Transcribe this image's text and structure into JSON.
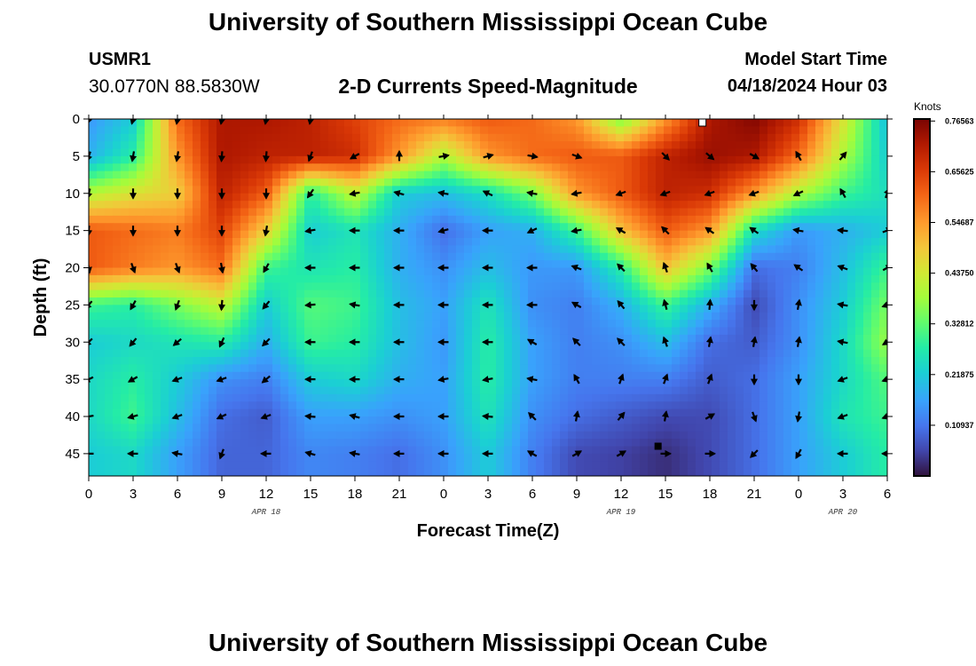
{
  "header": {
    "main_title": "University of Southern Mississippi Ocean Cube",
    "station_id": "USMR1",
    "station_coords": "30.0770N  88.5830W",
    "subtitle": "2-D Currents Speed-Magnitude",
    "model_start_label": "Model Start Time",
    "model_start_value": "04/18/2024 Hour 03"
  },
  "footer": {
    "title": "University of Southern Mississippi Ocean Cube"
  },
  "chart_data": {
    "type": "heatmap",
    "title": "2-D Currents Speed-Magnitude",
    "xlabel": "Forecast Time(Z)",
    "ylabel": "Depth (ft)",
    "x_ticks": [
      "0",
      "3",
      "6",
      "9",
      "12",
      "15",
      "18",
      "21",
      "0",
      "3",
      "6",
      "9",
      "12",
      "15",
      "18",
      "21",
      "0",
      "3",
      "6"
    ],
    "x_hours": [
      0,
      3,
      6,
      9,
      12,
      15,
      18,
      21,
      24,
      27,
      30,
      33,
      36,
      39,
      42,
      45,
      48,
      51,
      54
    ],
    "date_labels": [
      {
        "text": "APR 18",
        "hour": 12
      },
      {
        "text": "APR 19",
        "hour": 36
      },
      {
        "text": "APR 20",
        "hour": 51
      }
    ],
    "y_ticks": [
      0,
      5,
      10,
      15,
      20,
      25,
      30,
      35,
      40,
      45
    ],
    "xlim": [
      0,
      54
    ],
    "ylim": [
      0,
      48
    ],
    "colorbar": {
      "label": "Knots",
      "ticks": [
        "0.76563",
        "0.65625",
        "0.54687",
        "0.43750",
        "0.32812",
        "0.21875",
        "0.10937"
      ],
      "tick_values": [
        0.76563,
        0.65625,
        0.54687,
        0.4375,
        0.32812,
        0.21875,
        0.10937
      ],
      "range": [
        0,
        0.77
      ]
    },
    "vector_rows_depth": [
      0,
      5,
      10,
      15,
      20,
      25,
      30,
      35,
      40,
      45
    ],
    "vector_cols_hour": [
      0,
      3,
      6,
      9,
      12,
      15,
      18,
      21,
      24,
      27,
      30,
      33,
      36,
      39,
      42,
      45,
      48,
      51,
      54
    ],
    "vector_directions_deg": [
      [
        200,
        195,
        190,
        190,
        190,
        190,
        null,
        null,
        null,
        null,
        null,
        null,
        null,
        null,
        null,
        null,
        null,
        null,
        null
      ],
      [
        200,
        190,
        190,
        185,
        185,
        200,
        240,
        0,
        80,
        75,
        100,
        110,
        null,
        135,
        130,
        120,
        330,
        40,
        null
      ],
      [
        195,
        180,
        180,
        180,
        180,
        215,
        260,
        285,
        280,
        295,
        280,
        260,
        250,
        250,
        250,
        250,
        245,
        330,
        20
      ],
      [
        185,
        180,
        180,
        180,
        190,
        260,
        270,
        270,
        255,
        270,
        245,
        260,
        300,
        315,
        305,
        305,
        280,
        275,
        70
      ],
      [
        170,
        160,
        160,
        170,
        210,
        270,
        270,
        270,
        270,
        270,
        270,
        290,
        315,
        340,
        330,
        320,
        305,
        290,
        60
      ],
      [
        220,
        210,
        200,
        185,
        220,
        265,
        280,
        270,
        270,
        270,
        270,
        300,
        320,
        345,
        5,
        180,
        10,
        280,
        250
      ],
      [
        225,
        220,
        230,
        205,
        225,
        270,
        270,
        270,
        270,
        270,
        300,
        315,
        315,
        340,
        10,
        10,
        10,
        280,
        240
      ],
      [
        245,
        240,
        250,
        250,
        230,
        270,
        270,
        270,
        260,
        260,
        280,
        330,
        20,
        20,
        20,
        180,
        180,
        250,
        250
      ],
      [
        260,
        255,
        250,
        245,
        250,
        275,
        285,
        270,
        270,
        275,
        315,
        10,
        40,
        10,
        60,
        160,
        190,
        250,
        250
      ],
      [
        270,
        270,
        280,
        200,
        270,
        285,
        280,
        270,
        270,
        270,
        300,
        60,
        60,
        90,
        90,
        225,
        210,
        270,
        270
      ]
    ],
    "markers": [
      {
        "hour": 41.5,
        "depth": 0,
        "color": "white"
      },
      {
        "hour": 38.5,
        "depth": 44,
        "color": "black"
      }
    ],
    "speed_field_knots": [
      [
        0.15,
        0.22,
        0.6,
        0.72,
        0.72,
        0.7,
        0.65,
        0.6,
        0.58,
        0.62,
        0.6,
        0.55,
        0.35,
        0.55,
        0.72,
        0.76,
        0.68,
        0.45,
        0.2
      ],
      [
        0.18,
        0.28,
        0.55,
        0.72,
        0.7,
        0.7,
        0.68,
        0.55,
        0.4,
        0.55,
        0.6,
        0.62,
        0.62,
        0.7,
        0.74,
        0.72,
        0.6,
        0.4,
        0.22
      ],
      [
        0.4,
        0.45,
        0.48,
        0.7,
        0.62,
        0.28,
        0.42,
        0.22,
        0.2,
        0.25,
        0.35,
        0.55,
        0.62,
        0.7,
        0.68,
        0.55,
        0.4,
        0.3,
        0.25
      ],
      [
        0.62,
        0.6,
        0.58,
        0.65,
        0.48,
        0.22,
        0.26,
        0.18,
        0.1,
        0.16,
        0.18,
        0.3,
        0.5,
        0.62,
        0.55,
        0.25,
        0.15,
        0.18,
        0.22
      ],
      [
        0.62,
        0.58,
        0.55,
        0.6,
        0.3,
        0.26,
        0.28,
        0.18,
        0.14,
        0.2,
        0.15,
        0.15,
        0.28,
        0.5,
        0.35,
        0.1,
        0.12,
        0.2,
        0.3
      ],
      [
        0.3,
        0.28,
        0.35,
        0.42,
        0.22,
        0.32,
        0.3,
        0.2,
        0.16,
        0.26,
        0.14,
        0.12,
        0.18,
        0.3,
        0.18,
        0.06,
        0.14,
        0.22,
        0.35
      ],
      [
        0.22,
        0.24,
        0.26,
        0.28,
        0.18,
        0.3,
        0.28,
        0.2,
        0.15,
        0.28,
        0.16,
        0.12,
        0.14,
        0.2,
        0.1,
        0.08,
        0.14,
        0.24,
        0.38
      ],
      [
        0.24,
        0.28,
        0.22,
        0.14,
        0.12,
        0.22,
        0.24,
        0.18,
        0.16,
        0.28,
        0.16,
        0.12,
        0.12,
        0.12,
        0.08,
        0.1,
        0.16,
        0.24,
        0.32
      ],
      [
        0.24,
        0.3,
        0.2,
        0.1,
        0.08,
        0.16,
        0.16,
        0.14,
        0.16,
        0.26,
        0.14,
        0.1,
        0.08,
        0.06,
        0.06,
        0.1,
        0.16,
        0.26,
        0.3
      ],
      [
        0.22,
        0.24,
        0.16,
        0.09,
        0.09,
        0.13,
        0.12,
        0.1,
        0.14,
        0.22,
        0.12,
        0.06,
        0.05,
        0.03,
        0.06,
        0.1,
        0.16,
        0.22,
        0.28
      ]
    ]
  }
}
